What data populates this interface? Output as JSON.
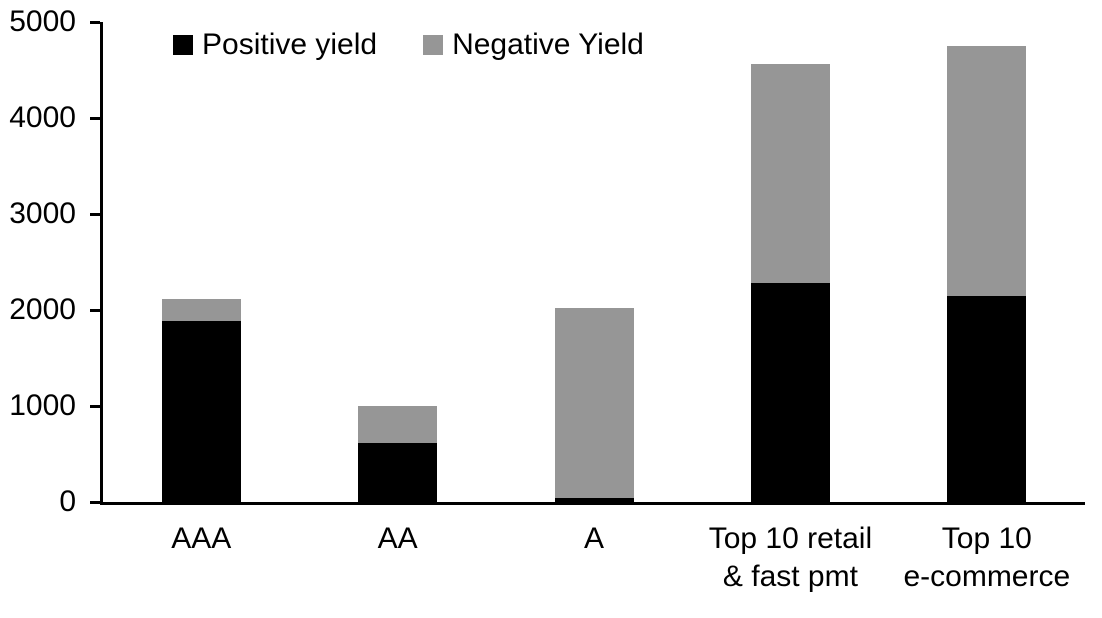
{
  "chart_data": {
    "type": "bar",
    "stacked": true,
    "title": "",
    "categories": [
      "AAA",
      "AA",
      "A",
      "Top 10 retail & fast pmt",
      "Top 10 e-commerce"
    ],
    "x_tick_labels": [
      "AAA",
      "AA",
      "A",
      "Top 10 retail\n& fast pmt",
      "Top 10\ne-commerce"
    ],
    "series": [
      {
        "name": "Positive yield",
        "color": "#000000",
        "values": [
          1890,
          615,
          45,
          2280,
          2150
        ]
      },
      {
        "name": "Negative Yield",
        "color": "#969696",
        "values": [
          230,
          385,
          1980,
          2280,
          2600
        ]
      }
    ],
    "totals": [
      2120,
      1000,
      2025,
      4560,
      4750
    ],
    "xlabel": "",
    "ylabel": "",
    "ylim": [
      0,
      5000
    ],
    "yticks": [
      0,
      1000,
      2000,
      3000,
      4000,
      5000
    ],
    "legend_position": "top-left",
    "grid": false,
    "axis_color": "#000000",
    "background_color": "#ffffff"
  }
}
